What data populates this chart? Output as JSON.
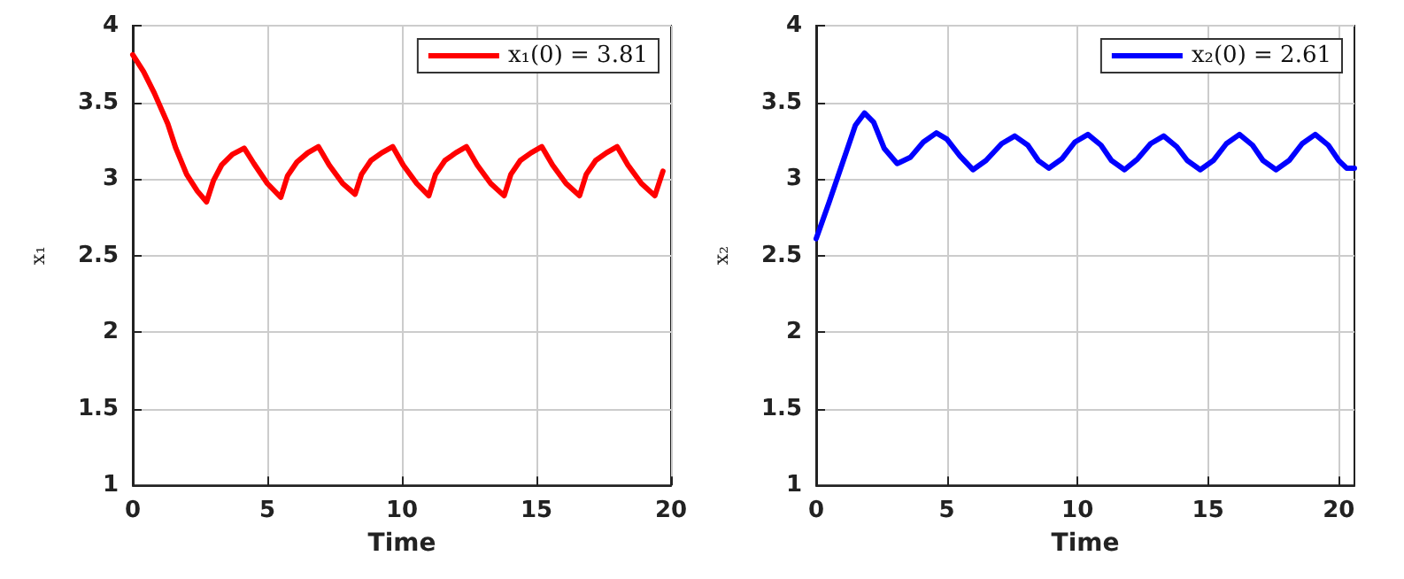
{
  "chart_data": [
    {
      "type": "line",
      "xlabel": "Time",
      "ylabel": "x₁",
      "xlim": [
        0,
        20
      ],
      "xticks": [
        0,
        5,
        10,
        15,
        20
      ],
      "ylim": [
        1,
        4
      ],
      "yticks": [
        1,
        1.5,
        2,
        2.5,
        3,
        3.5,
        4
      ],
      "grid": true,
      "legend": "top right",
      "marker": "none",
      "line_style": "solid",
      "series": [
        {
          "name": "x₁(0) = 3.81",
          "color": "#ff0000",
          "x": [
            0,
            0.4,
            0.8,
            1.3,
            1.6,
            2.0,
            2.4,
            2.74,
            3.0,
            3.3,
            3.7,
            4.14,
            4.5,
            5.0,
            5.5,
            5.75,
            6.1,
            6.5,
            6.9,
            7.3,
            7.8,
            8.26,
            8.5,
            8.85,
            9.25,
            9.66,
            10.05,
            10.55,
            11.0,
            11.25,
            11.6,
            12.0,
            12.4,
            12.8,
            13.3,
            13.8,
            14.05,
            14.4,
            14.8,
            15.2,
            15.6,
            16.1,
            16.6,
            16.85,
            17.2,
            17.6,
            18.0,
            18.4,
            18.9,
            19.4,
            19.7
          ],
          "values": [
            3.81,
            3.7,
            3.56,
            3.36,
            3.2,
            3.03,
            2.92,
            2.85,
            2.99,
            3.09,
            3.16,
            3.2,
            3.1,
            2.97,
            2.88,
            3.02,
            3.11,
            3.17,
            3.21,
            3.09,
            2.97,
            2.9,
            3.03,
            3.12,
            3.17,
            3.21,
            3.09,
            2.97,
            2.89,
            3.03,
            3.12,
            3.17,
            3.21,
            3.09,
            2.97,
            2.89,
            3.03,
            3.12,
            3.17,
            3.21,
            3.09,
            2.97,
            2.89,
            3.03,
            3.12,
            3.17,
            3.21,
            3.09,
            2.97,
            2.89,
            3.05
          ]
        }
      ]
    },
    {
      "type": "line",
      "xlabel": "Time",
      "ylabel": "x₂",
      "xlim": [
        0,
        20.6
      ],
      "xticks": [
        0,
        5,
        10,
        15,
        20
      ],
      "ylim": [
        1,
        4
      ],
      "yticks": [
        1,
        1.5,
        2,
        2.5,
        3,
        3.5,
        4
      ],
      "grid": true,
      "legend": "top right",
      "marker": "none",
      "line_style": "solid",
      "series": [
        {
          "name": "x₂(0) = 2.61",
          "color": "#0000ff",
          "x": [
            0,
            0.5,
            1.0,
            1.5,
            1.85,
            2.2,
            2.6,
            3.1,
            3.6,
            4.1,
            4.6,
            5.0,
            5.5,
            6.0,
            6.5,
            7.1,
            7.6,
            8.1,
            8.5,
            8.9,
            9.4,
            9.9,
            10.4,
            10.9,
            11.3,
            11.8,
            12.3,
            12.8,
            13.3,
            13.8,
            14.2,
            14.7,
            15.2,
            15.7,
            16.2,
            16.7,
            17.1,
            17.6,
            18.1,
            18.6,
            19.1,
            19.6,
            20.0,
            20.3,
            20.6
          ],
          "values": [
            2.61,
            2.85,
            3.1,
            3.35,
            3.43,
            3.37,
            3.2,
            3.1,
            3.14,
            3.24,
            3.3,
            3.26,
            3.15,
            3.06,
            3.12,
            3.23,
            3.28,
            3.22,
            3.12,
            3.07,
            3.13,
            3.24,
            3.29,
            3.22,
            3.12,
            3.06,
            3.13,
            3.23,
            3.28,
            3.21,
            3.12,
            3.06,
            3.12,
            3.23,
            3.29,
            3.22,
            3.12,
            3.06,
            3.12,
            3.23,
            3.29,
            3.22,
            3.12,
            3.07,
            3.07
          ]
        }
      ]
    }
  ]
}
